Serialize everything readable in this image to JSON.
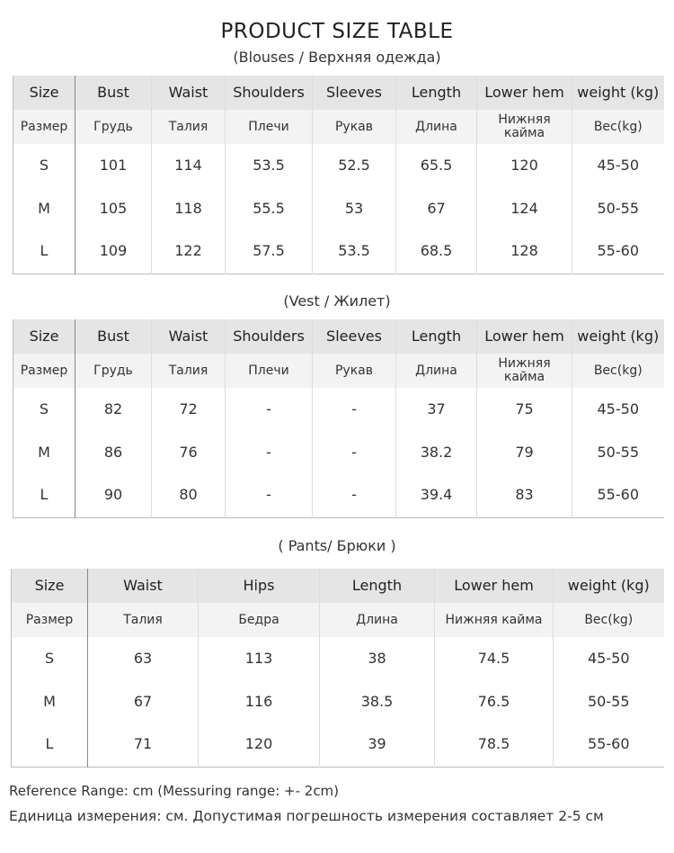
{
  "title": "PRODUCT SIZE TABLE",
  "tables": [
    {
      "caption": "(Blouses / Верхняя одежда)",
      "headers_en": [
        "Size",
        "Bust",
        "Waist",
        "Shoulders",
        "Sleeves",
        "Length",
        "Lower hem",
        "weight (kg)"
      ],
      "headers_ru": [
        "Размер",
        "Грудь",
        "Талия",
        "Плечи",
        "Рукав",
        "Длина",
        "Нижняя кайма",
        "Вес(kg)"
      ],
      "rows": [
        [
          "S",
          "101",
          "114",
          "53.5",
          "52.5",
          "65.5",
          "120",
          "45-50"
        ],
        [
          "M",
          "105",
          "118",
          "55.5",
          "53",
          "67",
          "124",
          "50-55"
        ],
        [
          "L",
          "109",
          "122",
          "57.5",
          "53.5",
          "68.5",
          "128",
          "55-60"
        ]
      ]
    },
    {
      "caption": "(Vest / Жилет)",
      "headers_en": [
        "Size",
        "Bust",
        "Waist",
        "Shoulders",
        "Sleeves",
        "Length",
        "Lower hem",
        "weight (kg)"
      ],
      "headers_ru": [
        "Размер",
        "Грудь",
        "Талия",
        "Плечи",
        "Рукав",
        "Длина",
        "Нижняя кайма",
        "Вес(kg)"
      ],
      "rows": [
        [
          "S",
          "82",
          "72",
          "-",
          "-",
          "37",
          "75",
          "45-50"
        ],
        [
          "M",
          "86",
          "76",
          "-",
          "-",
          "38.2",
          "79",
          "50-55"
        ],
        [
          "L",
          "90",
          "80",
          "-",
          "-",
          "39.4",
          "83",
          "55-60"
        ]
      ]
    },
    {
      "caption": "( Pants/ Брюки )",
      "headers_en": [
        "Size",
        "Waist",
        "Hips",
        "Length",
        "Lower hem",
        "weight (kg)"
      ],
      "headers_ru": [
        "Размер",
        "Талия",
        "Бедра",
        "Длина",
        "Нижняя кайма",
        "Вес(kg)"
      ],
      "rows": [
        [
          "S",
          "63",
          "113",
          "38",
          "74.5",
          "45-50"
        ],
        [
          "M",
          "67",
          "116",
          "38.5",
          "76.5",
          "50-55"
        ],
        [
          "L",
          "71",
          "120",
          "39",
          "78.5",
          "55-60"
        ]
      ]
    }
  ],
  "footer": {
    "line1": "Reference Range: cm (Messuring range: +- 2cm)",
    "line2": "Единица измерения: см. Допустимая погрешность измерения составляет 2-5 см"
  }
}
